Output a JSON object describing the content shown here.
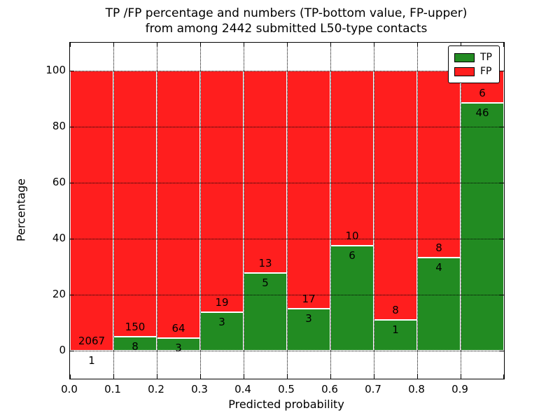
{
  "title": {
    "line1": "TP /FP percentage and numbers (TP-bottom value, FP-upper)",
    "line2": "from among 2442 submitted L50-type contacts"
  },
  "axes": {
    "ylabel": "Percentage",
    "xlabel": "Predicted probability",
    "y_ticks": [
      0,
      20,
      40,
      60,
      80,
      100
    ],
    "y_tick_labels": [
      "0",
      "20",
      "40",
      "60",
      "80",
      "100"
    ],
    "x_tick_labels": [
      "0.0",
      "0.1",
      "0.2",
      "0.3",
      "0.4",
      "0.5",
      "0.6",
      "0.7",
      "0.8",
      "0.9"
    ],
    "ylim": [
      -10,
      110
    ],
    "xlim": [
      0.0,
      1.0
    ],
    "grid": "dotted"
  },
  "legend": {
    "items": [
      {
        "label": "TP",
        "color": "#228b22"
      },
      {
        "label": "FP",
        "color": "#ff1e1e"
      }
    ]
  },
  "colors": {
    "tp": "#228b22",
    "fp": "#ff1e1e",
    "bar_edge": "#ffffff",
    "grid": "#000000"
  },
  "chart_data": {
    "type": "bar",
    "stacked": true,
    "normalized": "percent",
    "title": "TP /FP percentage and numbers (TP-bottom value, FP-upper) from among 2442 submitted L50-type contacts",
    "xlabel": "Predicted probability",
    "ylabel": "Percentage",
    "ylim": [
      -10,
      110
    ],
    "total_contacts": 2442,
    "categories": [
      "0.0-0.1",
      "0.1-0.2",
      "0.2-0.3",
      "0.3-0.4",
      "0.4-0.5",
      "0.5-0.6",
      "0.6-0.7",
      "0.7-0.8",
      "0.8-0.9",
      "0.9-1.0"
    ],
    "series": [
      {
        "name": "TP",
        "color": "#228b22",
        "values": [
          1,
          8,
          3,
          3,
          5,
          3,
          6,
          1,
          4,
          46
        ]
      },
      {
        "name": "FP",
        "color": "#ff1e1e",
        "values": [
          2067,
          150,
          64,
          19,
          13,
          17,
          10,
          8,
          8,
          6
        ]
      }
    ],
    "tp_percent": [
      0.05,
      5.06,
      4.48,
      13.64,
      27.78,
      15.0,
      37.5,
      11.11,
      33.33,
      88.46
    ]
  }
}
